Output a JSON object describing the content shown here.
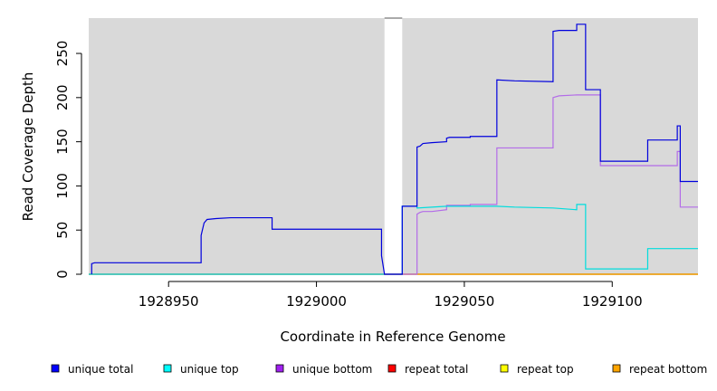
{
  "chart_data": {
    "type": "line",
    "title": "",
    "xlabel": "Coordinate in Reference Genome",
    "ylabel": "Read Coverage Depth",
    "xlim": [
      1928923,
      1929129
    ],
    "ylim": [
      0,
      290
    ],
    "x_ticks": [
      1928950,
      1929000,
      1929050,
      1929100
    ],
    "x_tick_labels": [
      "1928950",
      "1929000",
      "1929050",
      "1929100"
    ],
    "y_ticks": [
      0,
      50,
      100,
      150,
      200,
      250
    ],
    "y_tick_labels": [
      "0",
      "50",
      "100",
      "150",
      "200",
      "250"
    ],
    "gap_regions": [
      [
        1929023,
        1929029
      ]
    ],
    "grid": false,
    "legend_position": "bottom",
    "colors": {
      "panel_background": "#d9d9d9",
      "gap": "#ffffff"
    },
    "series": [
      {
        "name": "unique total",
        "color": "#0000dd",
        "points": [
          [
            1928924,
            0
          ],
          [
            1928924,
            12
          ],
          [
            1928925,
            13
          ],
          [
            1928961,
            13
          ],
          [
            1928961,
            44
          ],
          [
            1928962,
            58
          ],
          [
            1928963,
            62
          ],
          [
            1928966,
            63
          ],
          [
            1928971,
            64
          ],
          [
            1928985,
            64
          ],
          [
            1928985,
            51
          ],
          [
            1929022,
            51
          ],
          [
            1929022,
            21
          ],
          [
            1929023,
            0
          ],
          [
            1929029,
            0
          ],
          [
            1929029,
            77
          ],
          [
            1929034,
            77
          ],
          [
            1929034,
            144
          ],
          [
            1929035,
            145
          ],
          [
            1929036,
            148
          ],
          [
            1929039,
            149
          ],
          [
            1929044,
            150
          ],
          [
            1929044,
            154
          ],
          [
            1929045,
            155
          ],
          [
            1929052,
            155
          ],
          [
            1929052,
            156
          ],
          [
            1929061,
            156
          ],
          [
            1929061,
            220
          ],
          [
            1929067,
            219
          ],
          [
            1929080,
            218
          ],
          [
            1929080,
            275
          ],
          [
            1929082,
            276
          ],
          [
            1929088,
            276
          ],
          [
            1929088,
            283
          ],
          [
            1929091,
            283
          ],
          [
            1929091,
            209
          ],
          [
            1929096,
            209
          ],
          [
            1929096,
            128
          ],
          [
            1929112,
            128
          ],
          [
            1929112,
            152
          ],
          [
            1929122,
            152
          ],
          [
            1929122,
            168
          ],
          [
            1929123,
            168
          ],
          [
            1929123,
            105
          ],
          [
            1929129,
            105
          ]
        ]
      },
      {
        "name": "unique top",
        "color": "#00dddd",
        "points": [
          [
            1928923,
            0
          ],
          [
            1929029,
            0
          ],
          [
            1929029,
            77
          ],
          [
            1929034,
            77
          ],
          [
            1929034,
            75
          ],
          [
            1929044,
            77
          ],
          [
            1929052,
            77
          ],
          [
            1929061,
            77
          ],
          [
            1929067,
            76
          ],
          [
            1929080,
            75
          ],
          [
            1929088,
            73
          ],
          [
            1929088,
            79
          ],
          [
            1929091,
            79
          ],
          [
            1929091,
            6
          ],
          [
            1929112,
            6
          ],
          [
            1929112,
            29
          ],
          [
            1929129,
            29
          ]
        ]
      },
      {
        "name": "unique bottom",
        "color": "#b36ce8",
        "points": [
          [
            1928923,
            0
          ],
          [
            1929034,
            0
          ],
          [
            1929034,
            68
          ],
          [
            1929035,
            70
          ],
          [
            1929036,
            71
          ],
          [
            1929039,
            71
          ],
          [
            1929044,
            73
          ],
          [
            1929044,
            78
          ],
          [
            1929052,
            78
          ],
          [
            1929052,
            79
          ],
          [
            1929061,
            79
          ],
          [
            1929061,
            143
          ],
          [
            1929080,
            143
          ],
          [
            1929080,
            200
          ],
          [
            1929082,
            202
          ],
          [
            1929088,
            203
          ],
          [
            1929096,
            203
          ],
          [
            1929096,
            123
          ],
          [
            1929122,
            123
          ],
          [
            1929122,
            139
          ],
          [
            1929123,
            139
          ],
          [
            1929123,
            76
          ],
          [
            1929129,
            76
          ]
        ]
      },
      {
        "name": "repeat total",
        "color": "#dd0000",
        "points": [
          [
            1928923,
            0
          ],
          [
            1929129,
            0
          ]
        ]
      },
      {
        "name": "repeat top",
        "color": "#dddd00",
        "points": [
          [
            1928923,
            0
          ],
          [
            1929129,
            0
          ]
        ]
      },
      {
        "name": "repeat bottom",
        "color": "#f0a000",
        "points": [
          [
            1928923,
            0
          ],
          [
            1929129,
            0
          ]
        ]
      }
    ],
    "legend_swatch_colors": [
      "#0000ff",
      "#00ffff",
      "#a020f0",
      "#ff0000",
      "#ffff00",
      "#ffa500"
    ]
  }
}
